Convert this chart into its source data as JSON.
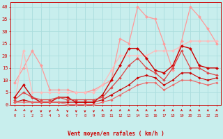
{
  "background_color": "#c8eeed",
  "grid_color": "#aadddd",
  "xlabel": "Vent moyen/en rafales ( km/h )",
  "xlabel_color": "#cc0000",
  "tick_color": "#cc0000",
  "xlim": [
    -0.5,
    23.5
  ],
  "ylim": [
    0,
    42
  ],
  "yticks": [
    0,
    5,
    10,
    15,
    20,
    25,
    30,
    35,
    40
  ],
  "xticks": [
    0,
    1,
    2,
    3,
    4,
    5,
    6,
    7,
    8,
    9,
    10,
    11,
    12,
    13,
    14,
    15,
    16,
    17,
    18,
    19,
    20,
    21,
    22,
    23
  ],
  "lines": [
    {
      "x": [
        0,
        1,
        2,
        3,
        4,
        5,
        6,
        7,
        8,
        9,
        10,
        11,
        12,
        13,
        14,
        15,
        16,
        17,
        18,
        19,
        20,
        21,
        22,
        23
      ],
      "y": [
        9,
        15,
        22,
        16,
        6,
        6,
        6,
        5,
        5,
        6,
        8,
        10,
        27,
        25,
        40,
        36,
        35,
        25,
        14,
        26,
        40,
        36,
        31,
        25
      ],
      "color": "#ff9999",
      "lw": 0.9,
      "marker": "D",
      "ms": 2.2
    },
    {
      "x": [
        0,
        1,
        2,
        3,
        4,
        5,
        6,
        7,
        8,
        9,
        10,
        11,
        12,
        13,
        14,
        15,
        16,
        17,
        18,
        19,
        20,
        21,
        22,
        23
      ],
      "y": [
        1,
        22,
        5,
        5,
        5,
        5,
        5,
        5,
        5,
        5,
        8,
        14,
        20,
        20,
        20,
        20,
        22,
        22,
        22,
        24,
        26,
        26,
        26,
        26
      ],
      "color": "#ffbbbb",
      "lw": 0.9,
      "marker": "D",
      "ms": 2.2
    },
    {
      "x": [
        0,
        1,
        2,
        3,
        4,
        5,
        6,
        7,
        8,
        9,
        10,
        11,
        12,
        13,
        14,
        15,
        16,
        17,
        18,
        19,
        20,
        21,
        22,
        23
      ],
      "y": [
        3,
        8,
        3,
        1,
        1,
        3,
        3,
        1,
        1,
        1,
        4,
        10,
        16,
        23,
        23,
        19,
        14,
        13,
        16,
        24,
        23,
        16,
        15,
        15
      ],
      "color": "#cc0000",
      "lw": 1.0,
      "marker": "D",
      "ms": 2.2
    },
    {
      "x": [
        0,
        1,
        2,
        3,
        4,
        5,
        6,
        7,
        8,
        9,
        10,
        11,
        12,
        13,
        14,
        15,
        16,
        17,
        18,
        19,
        20,
        21,
        22,
        23
      ],
      "y": [
        2,
        5,
        3,
        2,
        2,
        3,
        2,
        2,
        2,
        2,
        3,
        7,
        11,
        16,
        19,
        15,
        13,
        10,
        15,
        22,
        15,
        15,
        13,
        12
      ],
      "color": "#dd4444",
      "lw": 0.9,
      "marker": "D",
      "ms": 2.0
    },
    {
      "x": [
        0,
        1,
        2,
        3,
        4,
        5,
        6,
        7,
        8,
        9,
        10,
        11,
        12,
        13,
        14,
        15,
        16,
        17,
        18,
        19,
        20,
        21,
        22,
        23
      ],
      "y": [
        1,
        2,
        1,
        1,
        1,
        1,
        1,
        1,
        1,
        1,
        2,
        4,
        6,
        8,
        11,
        12,
        11,
        8,
        10,
        13,
        13,
        11,
        10,
        11
      ],
      "color": "#cc0000",
      "lw": 0.8,
      "marker": "D",
      "ms": 1.8
    },
    {
      "x": [
        0,
        1,
        2,
        3,
        4,
        5,
        6,
        7,
        8,
        9,
        10,
        11,
        12,
        13,
        14,
        15,
        16,
        17,
        18,
        19,
        20,
        21,
        22,
        23
      ],
      "y": [
        1,
        1,
        1,
        1,
        1,
        1,
        0,
        0,
        0,
        0,
        1,
        2,
        4,
        6,
        8,
        9,
        9,
        6,
        8,
        10,
        10,
        9,
        8,
        9
      ],
      "color": "#ee6666",
      "lw": 0.8,
      "marker": "D",
      "ms": 1.8
    }
  ],
  "wind_angles": [
    225,
    210,
    45,
    270,
    270,
    315,
    270,
    270,
    270,
    270,
    90,
    90,
    90,
    90,
    90,
    90,
    90,
    90,
    90,
    90,
    90,
    90,
    90,
    90
  ]
}
